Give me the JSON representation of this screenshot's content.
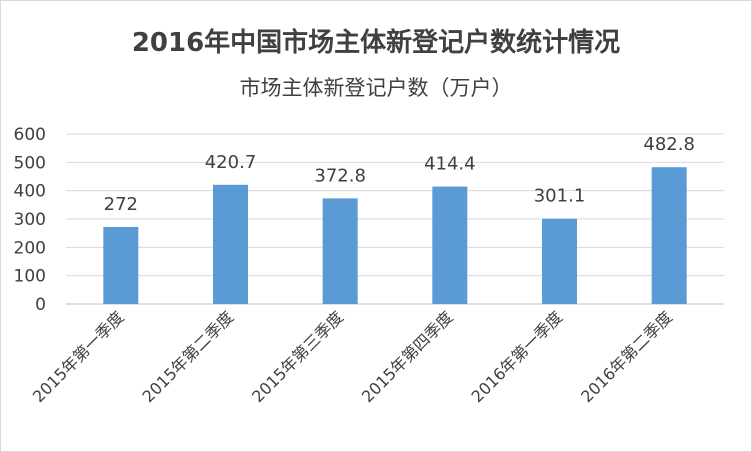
{
  "chart_data": {
    "type": "bar",
    "title": "2016年中国市场主体新登记户数统计情况",
    "subtitle": "市场主体新登记户数（万户）",
    "categories": [
      "2015年第一季度",
      "2015年第二季度",
      "2015年第三季度",
      "2015年第四季度",
      "2016年第一季度",
      "2016年第二季度"
    ],
    "values": [
      272,
      420.7,
      372.8,
      414.4,
      301.1,
      482.8
    ],
    "value_labels": [
      "272",
      "420.7",
      "372.8",
      "414.4",
      "301.1",
      "482.8"
    ],
    "ylim": [
      0,
      600
    ],
    "yticks": [
      "0",
      "100",
      "200",
      "300",
      "400",
      "500",
      "600"
    ],
    "grid": true,
    "legend": "none",
    "bar_color": "#5b9bd5"
  }
}
